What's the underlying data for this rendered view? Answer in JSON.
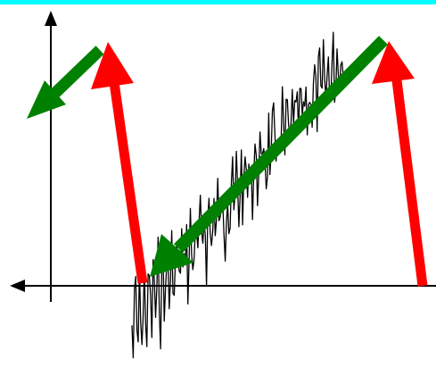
{
  "figure": {
    "background": "#ffffff",
    "top_band_color": "#00ffff",
    "axis_color": "#000000",
    "noise_color": "#000000",
    "red_arrow_color": "#ff0000",
    "green_arrow_color": "#008000"
  }
}
